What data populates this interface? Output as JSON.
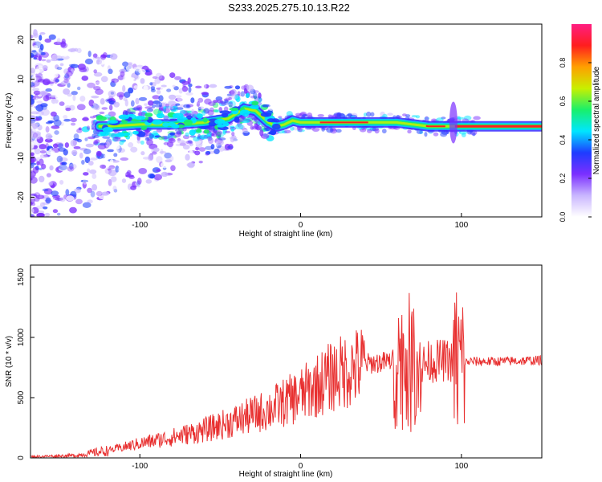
{
  "title": "S233.2025.275.10.13.R22",
  "chart_data": [
    {
      "type": "heatmap",
      "xlabel": "Height of straight line (km)",
      "ylabel": "Frequency (Hz)",
      "xlim": [
        -168,
        150
      ],
      "ylim": [
        -25,
        24
      ],
      "xticks": [
        -100,
        0,
        100
      ],
      "yticks": [
        -20,
        -10,
        0,
        10,
        20
      ],
      "grid": false,
      "colorbar": {
        "label": "Normalized spectral amplitude",
        "range": [
          0,
          1
        ],
        "ticks": [
          "0.0",
          "0.2",
          "0.4",
          "0.6",
          "0.8"
        ],
        "colors": [
          "#ffffff",
          "#c9b6ff",
          "#7b2fff",
          "#1e3cff",
          "#00e6ff",
          "#19f06a",
          "#c8f000",
          "#ffa000",
          "#ff1e1e",
          "#ff1e82"
        ]
      },
      "ridge": {
        "x": [
          -120,
          -100,
          -80,
          -60,
          -45,
          -35,
          -28,
          -20,
          -15,
          -10,
          -5,
          0,
          10,
          30,
          50,
          60,
          70,
          80,
          90,
          95,
          100,
          120,
          150
        ],
        "y": [
          -2,
          -1.5,
          -1.5,
          -1,
          0,
          2.5,
          2,
          -1,
          -2,
          -1.5,
          -0.5,
          -1,
          -1,
          -1,
          -1,
          -1,
          -1.5,
          -2,
          -2,
          -2,
          -2,
          -2,
          -2
        ]
      }
    },
    {
      "type": "line",
      "xlabel": "Height of straight line (km)",
      "ylabel": "SNR (10 * v/v)",
      "xlim": [
        -168,
        150
      ],
      "ylim": [
        0,
        1600
      ],
      "xticks": [
        -100,
        0,
        100
      ],
      "yticks": [
        0,
        500,
        1000,
        1500
      ],
      "series_color": "#e83030",
      "grid": false,
      "baseline": {
        "x": [
          -168,
          -140,
          -120,
          -100,
          -80,
          -60,
          -40,
          -20,
          0,
          20,
          40,
          55,
          60,
          65,
          70,
          75,
          80,
          90,
          95,
          100,
          105,
          120,
          150
        ],
        "y": [
          10,
          20,
          60,
          120,
          170,
          230,
          310,
          400,
          520,
          680,
          780,
          800,
          830,
          800,
          780,
          760,
          800,
          810,
          800,
          780,
          800,
          800,
          810
        ]
      }
    }
  ]
}
